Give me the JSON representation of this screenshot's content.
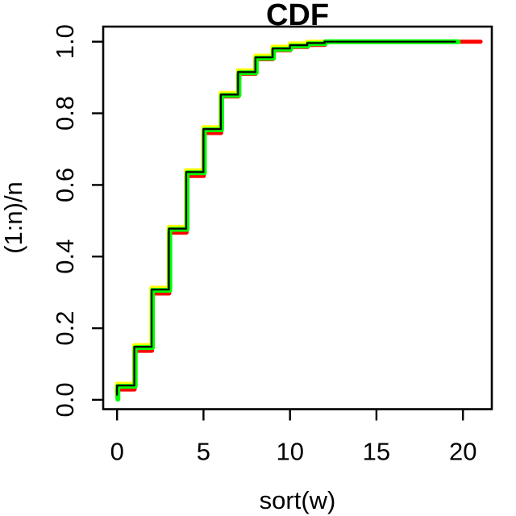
{
  "chart_data": {
    "type": "line",
    "subtype": "ecdf-step",
    "title": "CDF",
    "xlabel": "sort(w)",
    "ylabel": "(1:n)/n",
    "grid": false,
    "legend": "none",
    "background_color": "#ffffff",
    "axis_color": "#000000",
    "x_ticks": [
      0,
      5,
      10,
      15,
      20
    ],
    "x_tick_labels": [
      "0",
      "5",
      "10",
      "15",
      "20"
    ],
    "y_ticks": [
      0.0,
      0.2,
      0.4,
      0.6,
      0.8,
      1.0
    ],
    "y_tick_labels": [
      "0.0",
      "0.2",
      "0.4",
      "0.6",
      "0.8",
      "1.0"
    ],
    "xlim": [
      -0.8,
      21.67
    ],
    "ylim": [
      -0.026,
      1.042
    ],
    "step_x": [
      0,
      1,
      2,
      3,
      4,
      5,
      6,
      7,
      8,
      9,
      10,
      11,
      12
    ],
    "series": [
      {
        "name": "ecdf-yellow",
        "color": "#FFFF00",
        "line_width": 5,
        "x_shift": -0.01,
        "y_start": 0.02,
        "x_end": 19.5,
        "levels": [
          0.045,
          0.153,
          0.313,
          0.483,
          0.641,
          0.761,
          0.857,
          0.92,
          0.961,
          0.986,
          0.995,
          1.0,
          1.0
        ]
      },
      {
        "name": "ecdf-red",
        "color": "#FF0000",
        "line_width": 5,
        "x_shift": 0.02,
        "y_start": 0.006,
        "x_end": 21.0,
        "levels": [
          0.029,
          0.137,
          0.297,
          0.467,
          0.625,
          0.745,
          0.847,
          0.91,
          0.951,
          0.976,
          0.985,
          0.991,
          1.0
        ]
      },
      {
        "name": "ecdf-green",
        "color": "#00FF00",
        "line_width": 6,
        "x_shift": 0.05,
        "y_start": 0.002,
        "x_end": 19.68,
        "levels": [
          0.038,
          0.146,
          0.306,
          0.476,
          0.634,
          0.754,
          0.85,
          0.913,
          0.954,
          0.979,
          0.988,
          0.994,
          1.0
        ]
      },
      {
        "name": "ecdf-black",
        "color": "#000000",
        "line_width": 2.2,
        "x_shift": 0.0,
        "y_start": 0.012,
        "x_end": 19.6,
        "levels": [
          0.04,
          0.148,
          0.308,
          0.478,
          0.636,
          0.756,
          0.852,
          0.915,
          0.956,
          0.981,
          0.99,
          0.996,
          1.0
        ]
      }
    ]
  }
}
